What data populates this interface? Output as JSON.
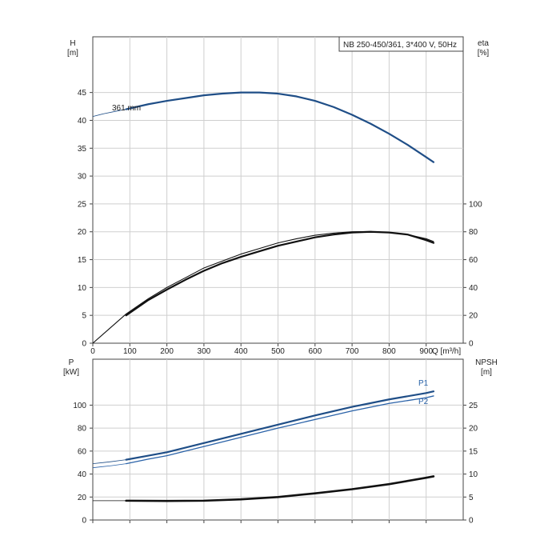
{
  "chart_data": [
    {
      "type": "line",
      "title": "NB 250-450/361, 3*400 V, 50Hz",
      "xlabel": "Q [m³/h]",
      "xlim": [
        0,
        1000
      ],
      "xticks": [
        0,
        100,
        200,
        300,
        400,
        500,
        600,
        700,
        800,
        900
      ],
      "y_left": {
        "label_line1": "H",
        "label_line2": "[m]",
        "lim": [
          0,
          55
        ],
        "ticks": [
          0,
          5,
          10,
          15,
          20,
          25,
          30,
          35,
          40,
          45
        ]
      },
      "y_right": {
        "label_line1": "eta",
        "label_line2": "[%]",
        "lim": [
          0,
          220
        ],
        "ticks": [
          0,
          20,
          40,
          60,
          80,
          100
        ]
      },
      "grid": true,
      "series": [
        {
          "name": "361 mm",
          "axis": "left",
          "color": "#1f4e87",
          "x": [
            90,
            150,
            200,
            250,
            300,
            350,
            400,
            450,
            500,
            550,
            600,
            650,
            700,
            750,
            800,
            850,
            900,
            920
          ],
          "y": [
            42.0,
            42.9,
            43.5,
            44.0,
            44.5,
            44.8,
            45.0,
            45.0,
            44.8,
            44.3,
            43.5,
            42.4,
            41.0,
            39.4,
            37.6,
            35.6,
            33.4,
            32.5
          ],
          "extension_x": [
            0,
            30,
            60,
            90
          ],
          "extension_y": [
            40.7,
            41.2,
            41.6,
            42.0
          ]
        },
        {
          "axis": "right",
          "color": "#111111",
          "x": [
            0,
            90,
            150,
            200,
            250,
            300,
            350,
            400,
            450,
            500,
            550,
            600,
            650,
            700,
            750,
            800,
            850,
            900,
            920
          ],
          "y": [
            0,
            21,
            32,
            40,
            47,
            54,
            59,
            64,
            68,
            72,
            75,
            77.5,
            79,
            80,
            80.2,
            79.5,
            78,
            75,
            73
          ]
        },
        {
          "axis": "right",
          "color": "#111111",
          "x": [
            90,
            150,
            200,
            250,
            300,
            350,
            400,
            450,
            500,
            550,
            600,
            650,
            700,
            750,
            800,
            850,
            900,
            920
          ],
          "y": [
            20,
            31,
            38.5,
            45.5,
            52,
            57.5,
            62,
            66,
            70,
            73,
            76,
            78,
            79.5,
            80,
            79.5,
            78,
            74,
            72
          ]
        }
      ]
    },
    {
      "type": "line",
      "xlim": [
        0,
        1000
      ],
      "xticks": [
        0,
        100,
        200,
        300,
        400,
        500,
        600,
        700,
        800,
        900
      ],
      "y_left": {
        "label_line1": "P",
        "label_line2": "[kW]",
        "lim": [
          0,
          140
        ],
        "ticks": [
          0,
          20,
          40,
          60,
          80,
          100
        ]
      },
      "y_right": {
        "label_line1": "NPSH",
        "label_line2": "[m]",
        "lim": [
          0,
          35
        ],
        "ticks": [
          0,
          5,
          10,
          15,
          20,
          25
        ]
      },
      "grid": true,
      "series": [
        {
          "name": "P1",
          "axis": "left",
          "color": "#1f4e87",
          "x": [
            90,
            150,
            200,
            300,
            400,
            500,
            600,
            700,
            800,
            900,
            920
          ],
          "y": [
            52.5,
            56,
            59,
            67,
            75,
            83,
            91,
            98.5,
            105,
            110.5,
            112
          ],
          "extension_x": [
            0,
            50,
            90
          ],
          "extension_y": [
            49,
            50.8,
            52.5
          ]
        },
        {
          "name": "P2",
          "axis": "left",
          "color": "#2a62a8",
          "x": [
            90,
            150,
            200,
            300,
            400,
            500,
            600,
            700,
            800,
            900,
            920
          ],
          "y": [
            49,
            53,
            56,
            64,
            72,
            80,
            87.5,
            95,
            101.5,
            106.5,
            108
          ],
          "extension_x": [
            0,
            50,
            90
          ],
          "extension_y": [
            45.5,
            47.3,
            49
          ]
        },
        {
          "axis": "right",
          "color": "#111111",
          "x": [
            90,
            200,
            300,
            400,
            500,
            600,
            700,
            800,
            900,
            920
          ],
          "y": [
            4.2,
            4.15,
            4.2,
            4.5,
            5.0,
            5.8,
            6.7,
            7.8,
            9.2,
            9.5
          ],
          "extension_x": [
            0,
            90
          ],
          "extension_y": [
            4.2,
            4.2
          ]
        }
      ]
    }
  ]
}
